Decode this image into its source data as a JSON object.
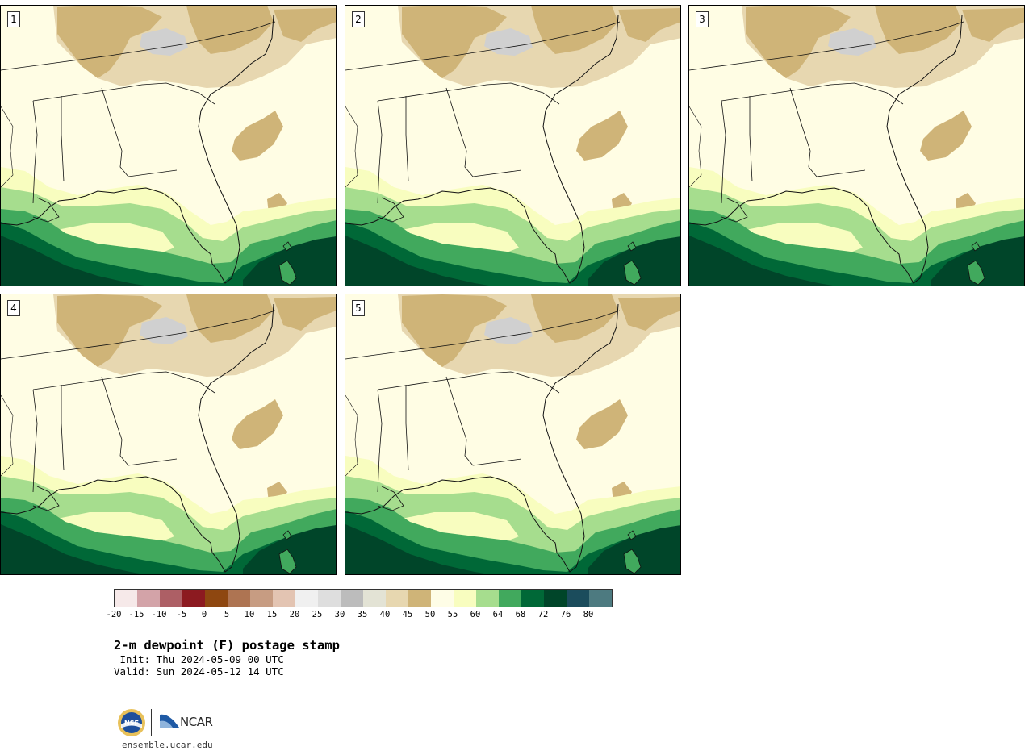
{
  "header": {
    "title": "2-m dewpoint (F) postage stamp",
    "init": " Init: Thu 2024-05-09 00 UTC",
    "valid": "Valid: Sun 2024-05-12 14 UTC"
  },
  "panels": [
    {
      "label": "1"
    },
    {
      "label": "2"
    },
    {
      "label": "3"
    },
    {
      "label": "4"
    },
    {
      "label": "5"
    }
  ],
  "colorbar": {
    "colors": [
      "#f6e9e9",
      "#d3a3a8",
      "#ad5f65",
      "#8c1a20",
      "#8e4710",
      "#ae7452",
      "#c79c82",
      "#e3c4b2",
      "#f0f0f0",
      "#dedede",
      "#bcbcbc",
      "#e3e3d5",
      "#e7d7b0",
      "#cfb478",
      "#fefde6",
      "#f8fdbf",
      "#a6dd8e",
      "#41a95d",
      "#006837",
      "#004529",
      "#1b4c5c",
      "#4d7a80"
    ],
    "tick_labels": [
      "-20",
      "-15",
      "-10",
      "-5",
      "0",
      "5",
      "10",
      "15",
      "20",
      "25",
      "30",
      "35",
      "40",
      "45",
      "50",
      "55",
      "60",
      "64",
      "68",
      "72",
      "76",
      "80"
    ]
  },
  "map_layers": {
    "ocean_deep": "#004529",
    "ocean_mid": "#006837",
    "coastal": "#41a95d",
    "humid_land": "#a6dd8e",
    "moist_land": "#f8fdbf",
    "land_base": "#fffde4",
    "dry_highland": "#cfb478",
    "mountain_tan": "#e7d7b0",
    "mountain_gray": "#d0d0d0"
  },
  "footer": {
    "url": "ensemble.ucar.edu",
    "logo_nsf": "NSF",
    "logo_ncar": "NCAR"
  }
}
